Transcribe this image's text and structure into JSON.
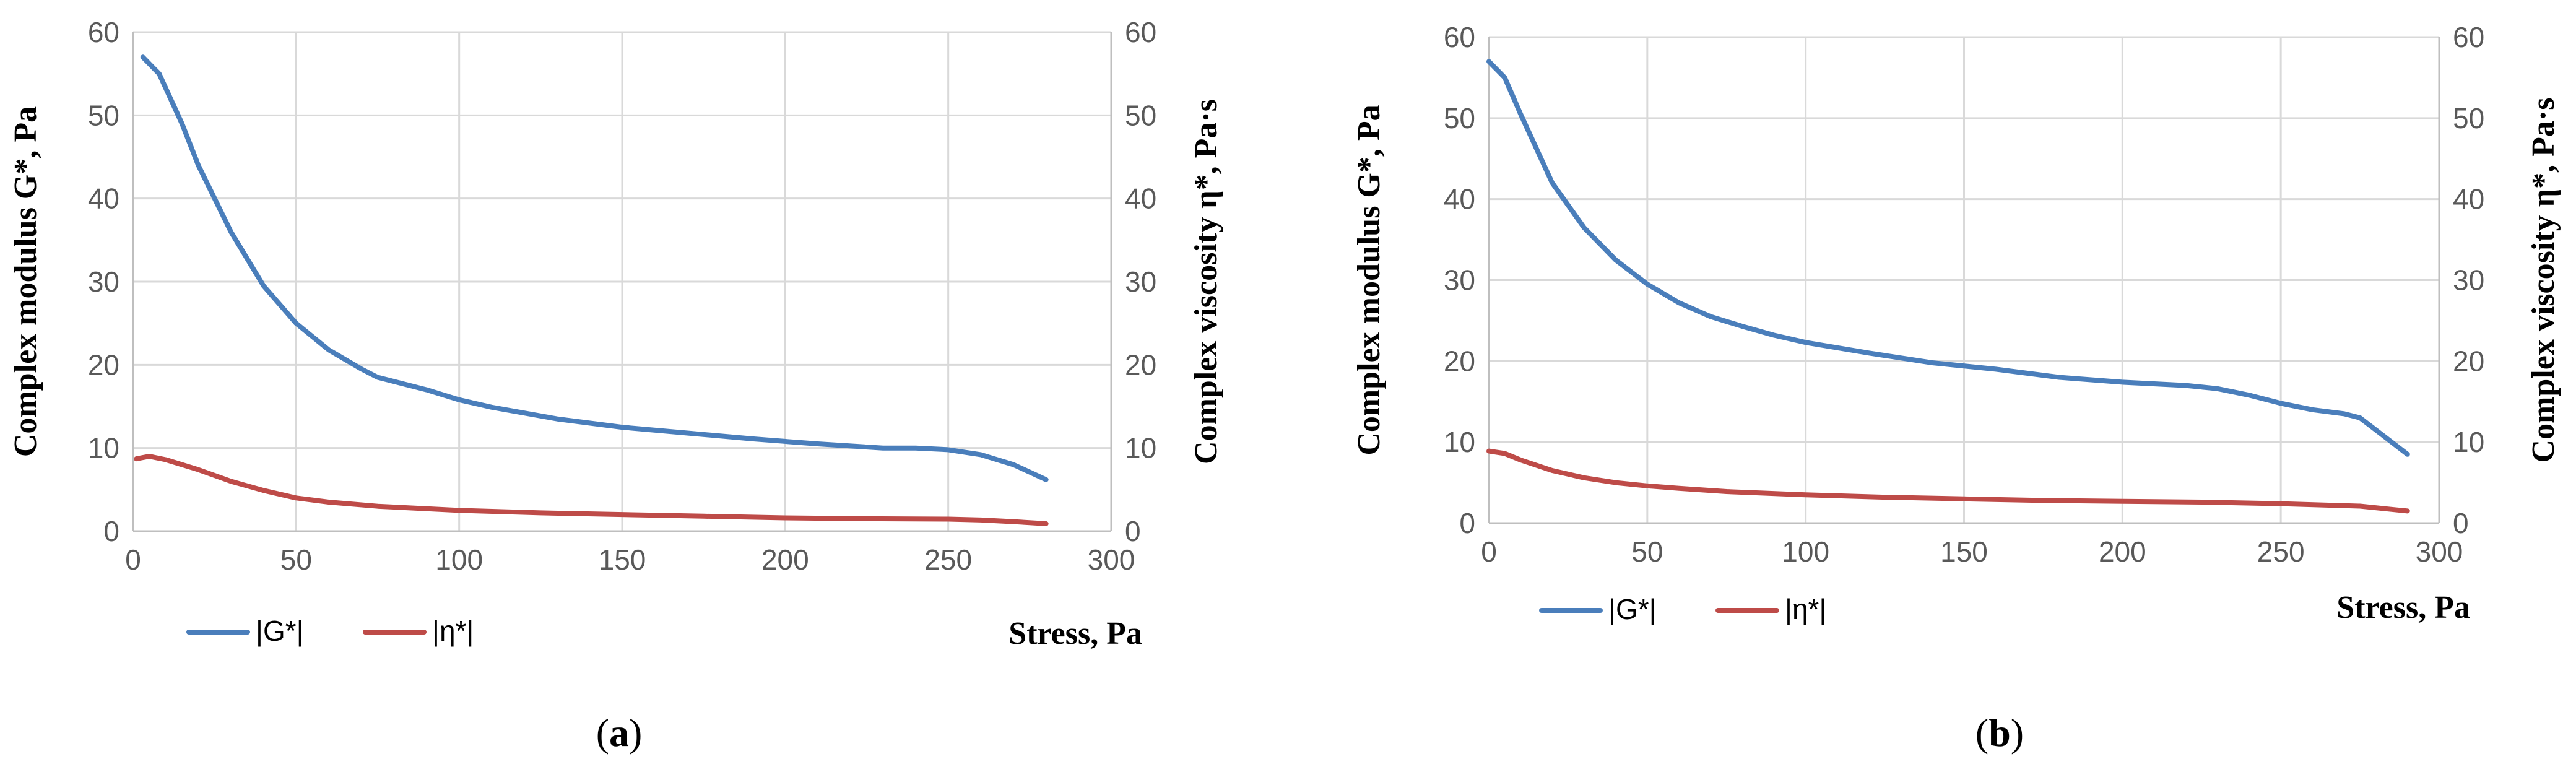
{
  "chart_data": [
    {
      "type": "line",
      "caption_letter": "a",
      "xlabel": "Stress, Pa",
      "ylabel": "Complex modulus G*, Pa",
      "y2label": "Complex viscosity η*, Pa·s",
      "xlim": [
        0,
        300
      ],
      "ylim": [
        0,
        60
      ],
      "y2lim": [
        0,
        60
      ],
      "xticks": [
        "0",
        "50",
        "100",
        "150",
        "200",
        "250",
        "300"
      ],
      "yticks": [
        "0",
        "10",
        "20",
        "30",
        "40",
        "50",
        "60"
      ],
      "y2ticks": [
        "0",
        "10",
        "20",
        "30",
        "40",
        "50",
        "60"
      ],
      "grid": true,
      "legend": "bottom-left",
      "series": [
        {
          "name": "|G*|",
          "color": "#4A7EBB",
          "x": [
            3,
            8,
            15,
            20,
            30,
            40,
            50,
            60,
            70,
            75,
            90,
            100,
            110,
            130,
            150,
            170,
            190,
            210,
            230,
            240,
            250,
            260,
            270,
            280
          ],
          "y": [
            57,
            55,
            49,
            44,
            36,
            29.5,
            25,
            21.8,
            19.5,
            18.5,
            17,
            15.8,
            14.9,
            13.5,
            12.5,
            11.8,
            11.1,
            10.5,
            10,
            10,
            9.8,
            9.2,
            8,
            6.2
          ]
        },
        {
          "name": "|η*|",
          "color": "#BE4B48",
          "x": [
            1,
            5,
            10,
            20,
            30,
            40,
            50,
            60,
            75,
            100,
            125,
            150,
            175,
            200,
            225,
            250,
            260,
            270,
            280
          ],
          "y": [
            8.7,
            9,
            8.6,
            7.4,
            6,
            4.9,
            4,
            3.5,
            3,
            2.5,
            2.2,
            2,
            1.8,
            1.6,
            1.5,
            1.45,
            1.35,
            1.15,
            0.9
          ]
        }
      ]
    },
    {
      "type": "line",
      "caption_letter": "b",
      "xlabel": "Stress, Pa",
      "ylabel": "Complex modulus G*, Pa",
      "y2label": "Complex viscosity η*, Pa·s",
      "xlim": [
        0,
        300
      ],
      "ylim": [
        0,
        60
      ],
      "y2lim": [
        0,
        60
      ],
      "xticks": [
        "0",
        "50",
        "100",
        "150",
        "200",
        "250",
        "300"
      ],
      "yticks": [
        "0",
        "10",
        "20",
        "30",
        "40",
        "50",
        "60"
      ],
      "y2ticks": [
        "0",
        "10",
        "20",
        "30",
        "40",
        "50",
        "60"
      ],
      "grid": true,
      "legend": "bottom-left",
      "series": [
        {
          "name": "|G*|",
          "color": "#4A7EBB",
          "x": [
            0,
            5,
            10,
            20,
            30,
            40,
            50,
            60,
            70,
            80,
            90,
            100,
            120,
            140,
            160,
            180,
            200,
            220,
            230,
            240,
            250,
            260,
            270,
            275,
            280,
            290
          ],
          "y": [
            57,
            55,
            50.5,
            42,
            36.5,
            32.5,
            29.5,
            27.2,
            25.5,
            24.3,
            23.2,
            22.3,
            21,
            19.8,
            19,
            18,
            17.4,
            17,
            16.6,
            15.8,
            14.8,
            14,
            13.5,
            13,
            11.5,
            8.5
          ]
        },
        {
          "name": "|η*|",
          "color": "#BE4B48",
          "x": [
            0,
            5,
            10,
            20,
            30,
            40,
            50,
            60,
            75,
            100,
            125,
            150,
            175,
            200,
            225,
            250,
            275,
            285,
            290
          ],
          "y": [
            8.9,
            8.6,
            7.8,
            6.5,
            5.6,
            5,
            4.6,
            4.3,
            3.9,
            3.5,
            3.2,
            3,
            2.8,
            2.7,
            2.6,
            2.4,
            2.1,
            1.7,
            1.5
          ]
        }
      ]
    }
  ]
}
